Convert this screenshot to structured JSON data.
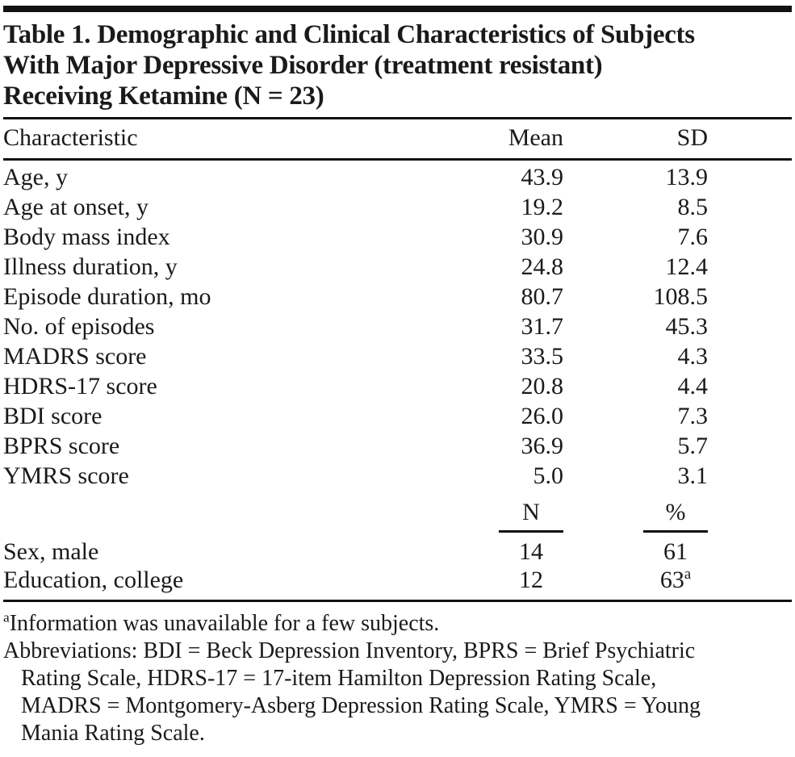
{
  "document": {
    "title_lines": [
      "Table 1. Demographic and Clinical Characteristics of Subjects",
      "With Major Depressive Disorder (treatment resistant)",
      "Receiving Ketamine (N = 23)"
    ],
    "table": {
      "header": {
        "characteristic": "Characteristic",
        "mean": "Mean",
        "sd": "SD"
      },
      "mean_sd_rows": [
        {
          "label": "Age, y",
          "mean": "43.9",
          "sd": "13.9"
        },
        {
          "label": "Age at onset, y",
          "mean": "19.2",
          "sd": "8.5"
        },
        {
          "label": "Body mass index",
          "mean": "30.9",
          "sd": "7.6"
        },
        {
          "label": "Illness duration, y",
          "mean": "24.8",
          "sd": "12.4"
        },
        {
          "label": "Episode duration, mo",
          "mean": "80.7",
          "sd": "108.5"
        },
        {
          "label": "No. of episodes",
          "mean": "31.7",
          "sd": "45.3"
        },
        {
          "label": "MADRS score",
          "mean": "33.5",
          "sd": "4.3"
        },
        {
          "label": "HDRS-17 score",
          "mean": "20.8",
          "sd": "4.4"
        },
        {
          "label": "BDI score",
          "mean": "26.0",
          "sd": "7.3"
        },
        {
          "label": "BPRS score",
          "mean": "36.9",
          "sd": "5.7"
        },
        {
          "label": "YMRS score",
          "mean": "5.0",
          "sd": "3.1"
        }
      ],
      "subheader": {
        "n": "N",
        "pct": "%"
      },
      "count_rows": [
        {
          "label": "Sex, male",
          "n": "14",
          "pct": "61",
          "pct_sup": ""
        },
        {
          "label": "Education, college",
          "n": "12",
          "pct": "63",
          "pct_sup": "a"
        }
      ]
    },
    "footnotes": {
      "a_sup": "a",
      "a_text": "Information was unavailable for a few subjects.",
      "abbreviations": "Abbreviations: BDI = Beck Depression Inventory, BPRS = Brief Psychiatric Rating Scale, HDRS-17 = 17-item Hamilton Depression Rating Scale, MADRS = Montgomery-Asberg Depression Rating Scale, YMRS = Young Mania Rating Scale."
    }
  }
}
